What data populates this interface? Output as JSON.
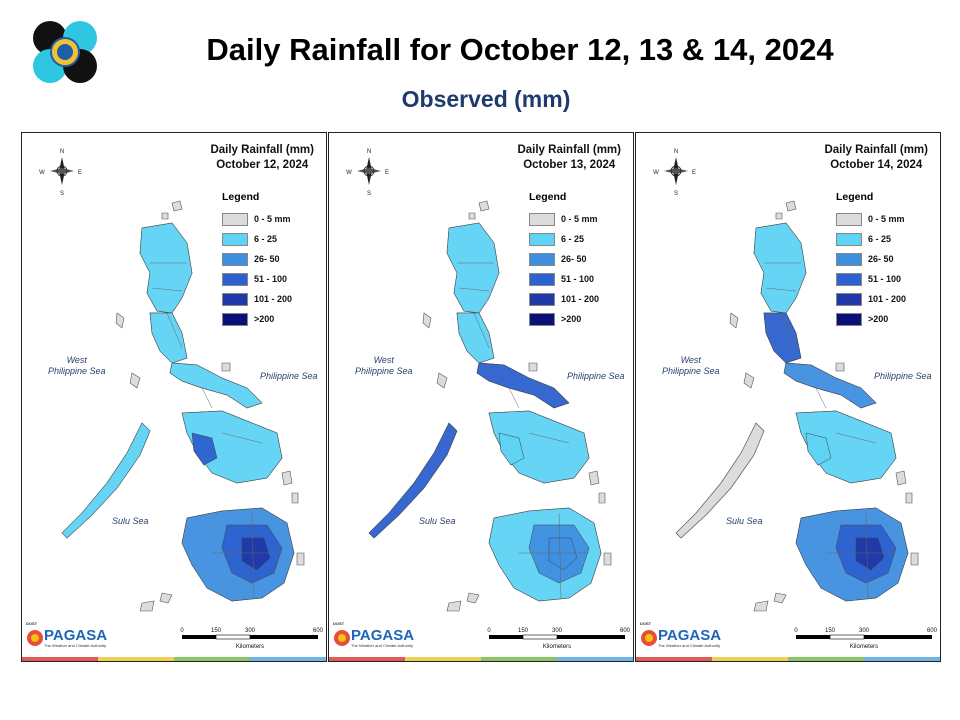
{
  "header": {
    "title": "Daily Rainfall for October 12, 13 & 14, 2024",
    "subtitle": "Observed (mm)"
  },
  "legend": {
    "title": "Legend",
    "classes": [
      {
        "label": "0 - 5 mm",
        "color": "#dcdcdc"
      },
      {
        "label": "6 - 25",
        "color": "#5fd3f5"
      },
      {
        "label": "26- 50",
        "color": "#3f8fe0"
      },
      {
        "label": "51 - 100",
        "color": "#2c61cf"
      },
      {
        "label": "101 - 200",
        "color": "#2038a8"
      },
      {
        "label": ">200",
        "color": "#0b0f78"
      }
    ]
  },
  "seas": {
    "west": "West\nPhilippine Sea",
    "east": "Philippine Sea",
    "sulu": "Sulu Sea"
  },
  "compass": {
    "n": "N",
    "s": "S",
    "e": "E",
    "w": "W"
  },
  "scale": {
    "ticks": [
      "0",
      "150",
      "300",
      "600"
    ],
    "unit": "Kilometers"
  },
  "branding": {
    "agency_name": "PAGASA",
    "dost_label": "DOST",
    "tagline": "The Weather and Climate Authority"
  },
  "strip_colors": [
    "#e05a5a",
    "#f0cf55",
    "#8cc46a",
    "#6fb6e6"
  ],
  "panels": [
    {
      "map_title": "Daily Rainfall (mm)",
      "date": "October 12, 2024",
      "zones": [
        {
          "name": "luzon-north",
          "class": 1
        },
        {
          "name": "luzon-central",
          "class": 1
        },
        {
          "name": "luzon-south",
          "class": 1
        },
        {
          "name": "visayas",
          "class": 1
        },
        {
          "name": "visayas-central",
          "class": 3
        },
        {
          "name": "palawan",
          "class": 1
        },
        {
          "name": "mindanao",
          "class": 2
        },
        {
          "name": "mindanao-core",
          "class": 3
        },
        {
          "name": "mindanao-center",
          "class": 4
        }
      ]
    },
    {
      "map_title": "Daily Rainfall (mm)",
      "date": "October 13, 2024",
      "zones": [
        {
          "name": "luzon-north",
          "class": 1
        },
        {
          "name": "luzon-central",
          "class": 1
        },
        {
          "name": "luzon-south",
          "class": 3
        },
        {
          "name": "visayas",
          "class": 1
        },
        {
          "name": "visayas-central",
          "class": 1
        },
        {
          "name": "palawan",
          "class": 3
        },
        {
          "name": "mindanao",
          "class": 1
        },
        {
          "name": "mindanao-core",
          "class": 2
        },
        {
          "name": "mindanao-center",
          "class": 2
        }
      ]
    },
    {
      "map_title": "Daily Rainfall (mm)",
      "date": "October 14, 2024",
      "zones": [
        {
          "name": "luzon-north",
          "class": 1
        },
        {
          "name": "luzon-central",
          "class": 3
        },
        {
          "name": "luzon-south",
          "class": 2
        },
        {
          "name": "visayas",
          "class": 1
        },
        {
          "name": "visayas-central",
          "class": 1
        },
        {
          "name": "palawan",
          "class": 0
        },
        {
          "name": "mindanao",
          "class": 2
        },
        {
          "name": "mindanao-core",
          "class": 3
        },
        {
          "name": "mindanao-center",
          "class": 4
        }
      ]
    }
  ]
}
